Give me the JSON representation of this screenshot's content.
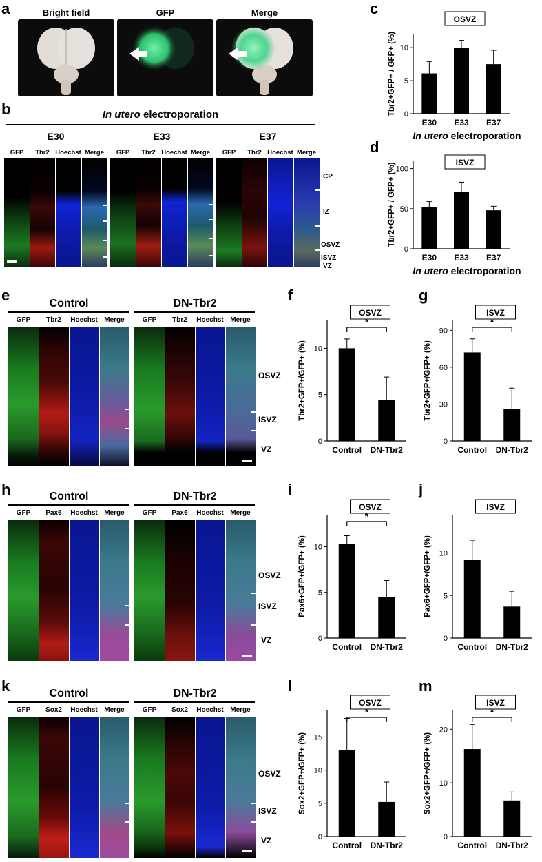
{
  "panel_letters": [
    "a",
    "b",
    "c",
    "d",
    "e",
    "f",
    "g",
    "h",
    "i",
    "j",
    "k",
    "l",
    "m"
  ],
  "panel_a": {
    "titles": [
      "Bright field",
      "GFP",
      "Merge"
    ],
    "colors": {
      "tissue": "#e6e1dc",
      "gfp": "#34c97a",
      "bg": "#0c0c0c"
    }
  },
  "panel_b": {
    "header_italic": "In utero",
    "header_rest": " electroporation",
    "groups": [
      "E30",
      "E33",
      "E37"
    ],
    "channels": [
      "GFP",
      "Tbr2",
      "Hoechst",
      "Merge"
    ],
    "zones": [
      "CP",
      "IZ",
      "OSVZ",
      "ISVZ",
      "VZ"
    ]
  },
  "panel_e": {
    "groups": [
      "Control",
      "DN-Tbr2"
    ],
    "channels": [
      "GFP",
      "Tbr2",
      "Hoechst",
      "Merge"
    ],
    "zones": [
      "OSVZ",
      "ISVZ",
      "VZ"
    ]
  },
  "panel_h": {
    "groups": [
      "Control",
      "DN-Tbr2"
    ],
    "channels": [
      "GFP",
      "Pax6",
      "Hoechst",
      "Merge"
    ],
    "zones": [
      "OSVZ",
      "ISVZ",
      "VZ"
    ]
  },
  "panel_k": {
    "groups": [
      "Control",
      "DN-Tbr2"
    ],
    "channels": [
      "GFP",
      "Sox2",
      "Hoechst",
      "Merge"
    ],
    "zones": [
      "OSVZ",
      "ISVZ",
      "VZ"
    ]
  },
  "chart_data": [
    {
      "id": "c",
      "type": "bar",
      "title": "OSVZ",
      "categories": [
        "E30",
        "E33",
        "E37"
      ],
      "values": [
        6.1,
        10.0,
        7.5
      ],
      "errors": [
        1.8,
        1.1,
        2.1
      ],
      "ylabel": "Tbr2+GFP+ / GFP+ (%)",
      "xlabel_italic": "In utero",
      "xlabel": " electroporation",
      "ylim": [
        0,
        12
      ],
      "yticks": [
        0,
        5,
        10
      ],
      "significance": false
    },
    {
      "id": "d",
      "type": "bar",
      "title": "ISVZ",
      "categories": [
        "E30",
        "E33",
        "E37"
      ],
      "values": [
        52,
        71,
        48
      ],
      "errors": [
        7,
        12,
        5
      ],
      "ylabel": "Tbr2+GFP+ / GFP+ (%)",
      "xlabel_italic": "In utero",
      "xlabel": " electroporation",
      "ylim": [
        0,
        110
      ],
      "yticks": [
        0,
        50,
        100
      ],
      "significance": false
    },
    {
      "id": "f",
      "type": "bar",
      "title": "OSVZ",
      "categories": [
        "Control",
        "DN-Tbr2"
      ],
      "values": [
        10.0,
        4.4
      ],
      "errors": [
        1.0,
        2.5
      ],
      "ylabel": "Tbr2+GFP+/GFP+ (%)",
      "xlabel": "",
      "ylim": [
        0,
        13
      ],
      "yticks": [
        0,
        5,
        10
      ],
      "significance": true,
      "sig_label": "*"
    },
    {
      "id": "g",
      "type": "bar",
      "title": "ISVZ",
      "categories": [
        "Control",
        "DN-Tbr2"
      ],
      "values": [
        72,
        26
      ],
      "errors": [
        11,
        17
      ],
      "ylabel": "Tbr2+GFP+/GFP+ (%)",
      "xlabel": "",
      "ylim": [
        0,
        98
      ],
      "yticks": [
        0,
        30,
        60,
        90
      ],
      "significance": true,
      "sig_label": "*"
    },
    {
      "id": "i",
      "type": "bar",
      "title": "OSVZ",
      "categories": [
        "Control",
        "DN-Tbr2"
      ],
      "values": [
        10.3,
        4.5
      ],
      "errors": [
        0.9,
        1.8
      ],
      "ylabel": "Pax6+GFP+/GFP+ (%)",
      "xlabel": "",
      "ylim": [
        0,
        13.5
      ],
      "yticks": [
        0,
        5,
        10
      ],
      "significance": true,
      "sig_label": "*"
    },
    {
      "id": "j",
      "type": "bar",
      "title": "ISVZ",
      "categories": [
        "Control",
        "DN-Tbr2"
      ],
      "values": [
        9.2,
        3.7
      ],
      "errors": [
        2.3,
        1.8
      ],
      "ylabel": "Pax6+GFP+/GFP+ (%)",
      "xlabel": "",
      "ylim": [
        0,
        14.5
      ],
      "yticks": [
        0,
        5,
        10
      ],
      "significance": false
    },
    {
      "id": "l",
      "type": "bar",
      "title": "OSVZ",
      "categories": [
        "Control",
        "DN-Tbr2"
      ],
      "values": [
        13.0,
        5.2
      ],
      "errors": [
        4.8,
        3.0
      ],
      "ylabel": "Sox2+GFP+/GFP+ (%)",
      "xlabel": "",
      "ylim": [
        0,
        19
      ],
      "yticks": [
        0,
        5,
        10,
        15
      ],
      "significance": true,
      "sig_label": "*"
    },
    {
      "id": "m",
      "type": "bar",
      "title": "ISVZ",
      "categories": [
        "Control",
        "DN-Tbr2"
      ],
      "values": [
        16.3,
        6.7
      ],
      "errors": [
        4.6,
        1.6
      ],
      "ylabel": "Sox2+GFP+/GFP+ (%)",
      "xlabel": "",
      "ylim": [
        0,
        23.5
      ],
      "yticks": [
        0,
        10,
        20
      ],
      "significance": true,
      "sig_label": "*"
    }
  ]
}
